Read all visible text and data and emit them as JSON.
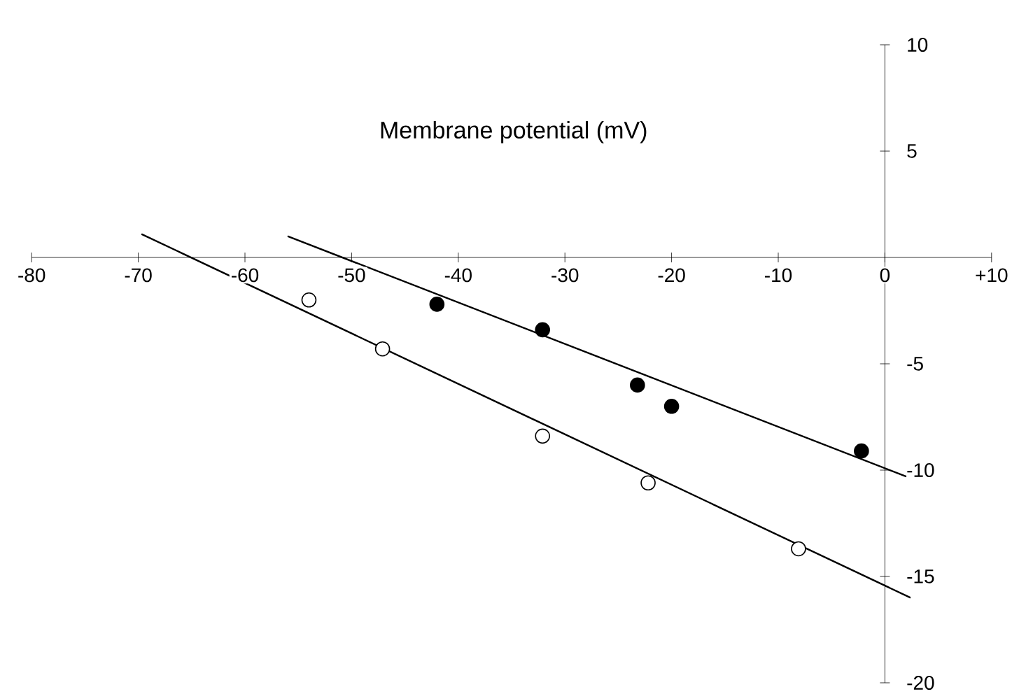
{
  "chart_data": {
    "type": "scatter",
    "xlabel": "Membrane potential (mV)",
    "xlim": [
      -80,
      10
    ],
    "ylim": [
      -20,
      10
    ],
    "xticks": [
      -80,
      -70,
      -60,
      -50,
      -40,
      -30,
      -20,
      -10,
      0,
      {
        "value": 10,
        "label": "+10"
      }
    ],
    "yticks": [
      -20,
      -15,
      -10,
      -5,
      5,
      10
    ],
    "series": [
      {
        "color": "#000000",
        "marker": "circle",
        "x": [
          -42.0,
          -32.1,
          -23.2,
          -20.0,
          -2.2
        ],
        "values": [
          -2.2,
          -3.4,
          -6.0,
          -7.0,
          -9.1
        ]
      },
      {
        "color": "#ffffff",
        "marker": "circle",
        "x": [
          -54.0,
          -47.1,
          -32.1,
          -22.2,
          -8.1
        ],
        "values": [
          -2.0,
          -4.3,
          -8.4,
          -10.6,
          -13.7
        ]
      },
      {
        "type": "line",
        "color": "#000000",
        "marker": "none",
        "x": [
          -56.0,
          2.0
        ],
        "values": [
          1.0,
          -10.3
        ]
      },
      {
        "type": "line",
        "color": "#000000",
        "marker": "none",
        "x": [
          -69.7,
          2.4
        ],
        "values": [
          1.1,
          -16.0
        ]
      }
    ]
  }
}
